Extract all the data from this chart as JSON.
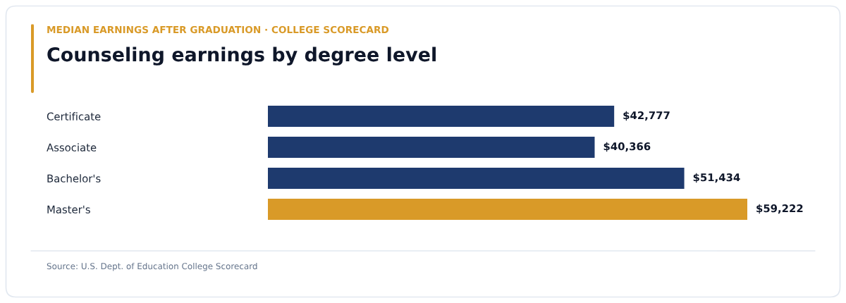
{
  "chart_data": {
    "type": "bar",
    "orientation": "horizontal",
    "subtitle": "MEDIAN EARNINGS AFTER GRADUATION · COLLEGE SCORECARD",
    "title": "Counseling earnings by degree level",
    "categories": [
      "Certificate",
      "Associate",
      "Bachelor's",
      "Master's"
    ],
    "values": [
      42777,
      40366,
      51434,
      59222
    ],
    "colors": [
      "#1e3a6e",
      "#1e3a6e",
      "#1e3a6e",
      "#d99a28"
    ],
    "value_labels": [
      "$42,777",
      "$40,366",
      "$51,434",
      "$59,222"
    ],
    "tick_labels": "y",
    "annotations": [
      "Source: U.S. Dept. of Education College Scorecard"
    ]
  }
}
